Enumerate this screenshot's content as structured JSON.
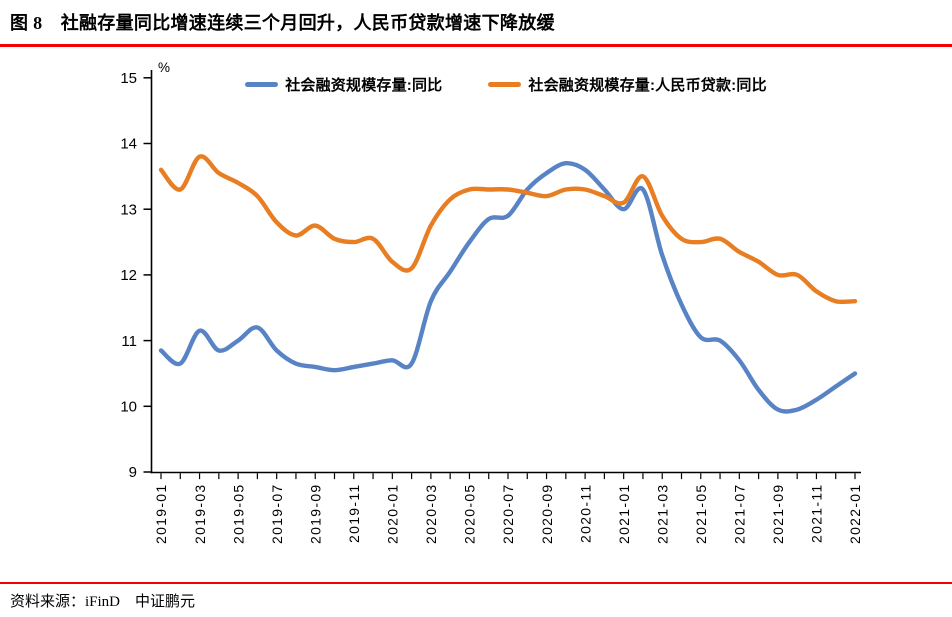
{
  "page": {
    "title": "图 8　社融存量同比增速连续三个月回升，人民币贷款增速下降放缓",
    "source_note": "资料来源：iFinD　中证鹏元",
    "accent_red": "#f40000"
  },
  "chart_data": {
    "type": "line",
    "title": "",
    "xlabel": "",
    "ylabel": "%",
    "grid": false,
    "smooth": true,
    "legend_position": "top-center",
    "ylim": [
      9,
      15
    ],
    "y_ticks": [
      9,
      10,
      11,
      12,
      13,
      14,
      15
    ],
    "x_tick_label_every": 2,
    "x": [
      "2019-01",
      "2019-02",
      "2019-03",
      "2019-04",
      "2019-05",
      "2019-06",
      "2019-07",
      "2019-08",
      "2019-09",
      "2019-10",
      "2019-11",
      "2019-12",
      "2020-01",
      "2020-02",
      "2020-03",
      "2020-04",
      "2020-05",
      "2020-06",
      "2020-07",
      "2020-08",
      "2020-09",
      "2020-10",
      "2020-11",
      "2020-12",
      "2021-01",
      "2021-02",
      "2021-03",
      "2021-04",
      "2021-05",
      "2021-06",
      "2021-07",
      "2021-08",
      "2021-09",
      "2021-10",
      "2021-11",
      "2021-12",
      "2022-01"
    ],
    "series": [
      {
        "name": "社会融资规模存量:同比",
        "color": "#5884c6",
        "values": [
          10.85,
          10.65,
          11.15,
          10.85,
          11.0,
          11.2,
          10.85,
          10.65,
          10.6,
          10.55,
          10.6,
          10.65,
          10.7,
          10.65,
          11.6,
          12.05,
          12.5,
          12.85,
          12.9,
          13.3,
          13.55,
          13.7,
          13.6,
          13.3,
          13.0,
          13.3,
          12.3,
          11.55,
          11.05,
          11.0,
          10.7,
          10.25,
          9.95,
          9.95,
          10.1,
          10.3,
          10.5
        ]
      },
      {
        "name": "社会融资规模存量:人民币贷款:同比",
        "color": "#e87d22",
        "values": [
          13.6,
          13.3,
          13.8,
          13.55,
          13.4,
          13.2,
          12.8,
          12.6,
          12.75,
          12.55,
          12.5,
          12.55,
          12.2,
          12.1,
          12.75,
          13.15,
          13.3,
          13.3,
          13.3,
          13.25,
          13.2,
          13.3,
          13.3,
          13.2,
          13.1,
          13.5,
          12.9,
          12.55,
          12.5,
          12.55,
          12.35,
          12.2,
          12.0,
          12.0,
          11.75,
          11.6,
          11.6
        ]
      }
    ]
  }
}
